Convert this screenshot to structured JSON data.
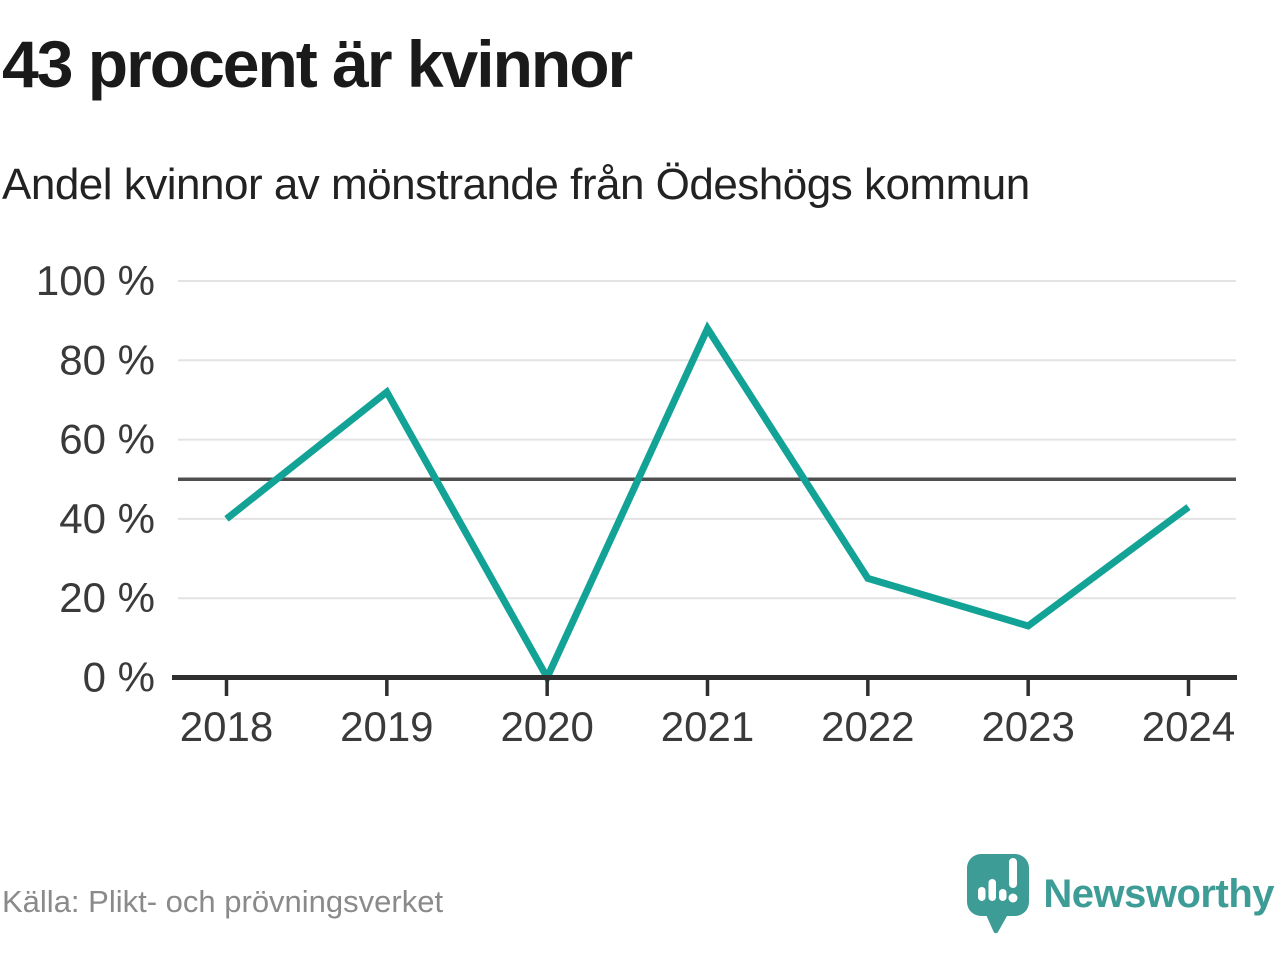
{
  "header": {
    "title": "43 procent är kvinnor",
    "subtitle": "Andel kvinnor av mönstrande från Ödeshögs kommun"
  },
  "chart_data": {
    "type": "line",
    "title": "43 procent är kvinnor",
    "subtitle": "Andel kvinnor av mönstrande från Ödeshögs kommun",
    "categories": [
      "2018",
      "2019",
      "2020",
      "2021",
      "2022",
      "2023",
      "2024"
    ],
    "series": [
      {
        "name": "Andel kvinnor av mönstrande",
        "values": [
          40,
          72,
          0,
          88,
          25,
          13,
          43
        ]
      }
    ],
    "unit": "%",
    "xlabel": "",
    "ylabel": "",
    "ylim": [
      0,
      100
    ],
    "yticks": [
      0,
      20,
      40,
      60,
      80,
      100
    ],
    "ytick_labels": [
      "0 %",
      "20 %",
      "40 %",
      "60 %",
      "80 %",
      "100 %"
    ],
    "reference_line": {
      "value": 50
    },
    "grid": "horizontal",
    "legend": "none",
    "line_color": "#12A296"
  },
  "footer": {
    "source": "Källa: Plikt- och prövningsverket",
    "branding": {
      "name": "Newsworthy"
    }
  },
  "colors": {
    "accent": "#12A296",
    "brand_teal": "#3E9C96",
    "gridline": "#e3e3e3",
    "reference_line": "#4f4f4f",
    "axis": "#2f2f2f",
    "tick_label": "#3a3a3a",
    "title_text": "#1a1a1a",
    "source_text": "#8a8a8a"
  }
}
